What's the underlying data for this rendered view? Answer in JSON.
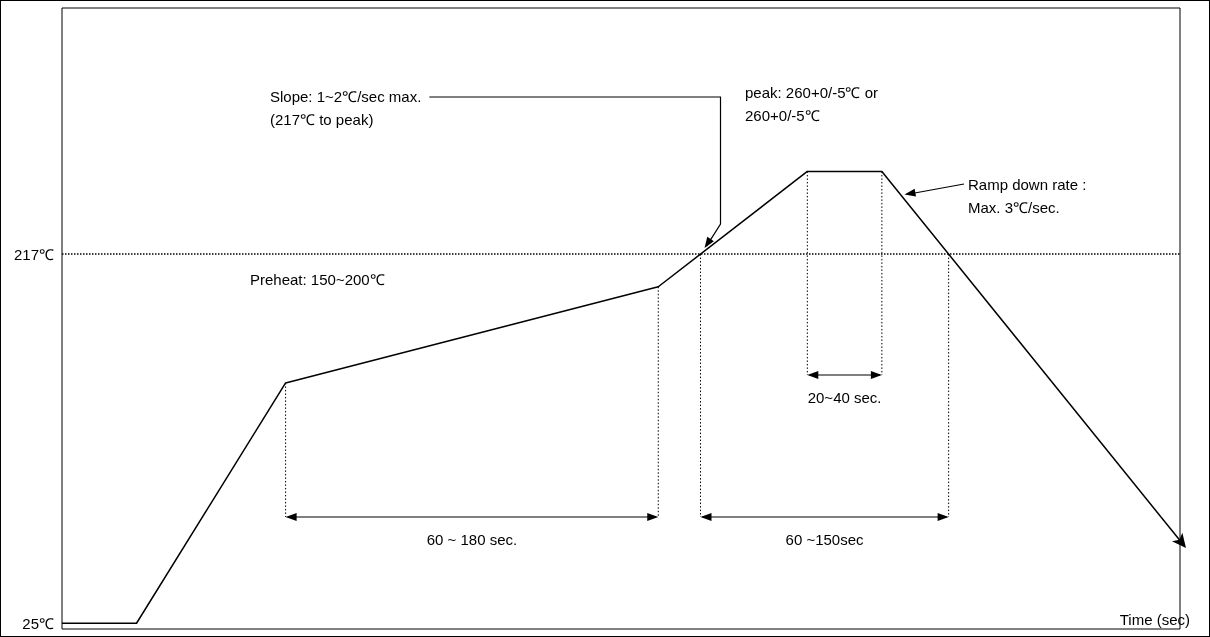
{
  "chart_data": {
    "type": "line",
    "xlabel": "Time (sec)",
    "categories": [
      null,
      null,
      null,
      null,
      null,
      null,
      null,
      null,
      null,
      null,
      null,
      null,
      null,
      null,
      null,
      null
    ],
    "series": [
      {
        "color": "#000000",
        "values": [
          25,
          25,
          87.5,
          150,
          160,
          170,
          180,
          190,
          200,
          230,
          260,
          260,
          212,
          164,
          116,
          68
        ]
      }
    ],
    "ylim": [
      22,
      345
    ],
    "yticks": [
      {
        "value": 25,
        "label": "25℃"
      },
      {
        "value": 217,
        "label": "217℃"
      }
    ],
    "tick_labels": "y",
    "marker": "none",
    "line_style": "solid",
    "ref_lines": [
      {
        "axis": "y",
        "value": 217,
        "line_style": "dotted"
      }
    ],
    "annotations": [
      "Slope: 1~2℃/sec max.\n(217℃ to peak)",
      "peak: 260+0/-5℃  or\n260+0/-5℃",
      "Ramp down rate :\nMax. 3℃/sec.",
      "Preheat: 150~200℃",
      "60 ~ 180 sec.",
      "20~40 sec.",
      "60 ~150sec"
    ]
  }
}
